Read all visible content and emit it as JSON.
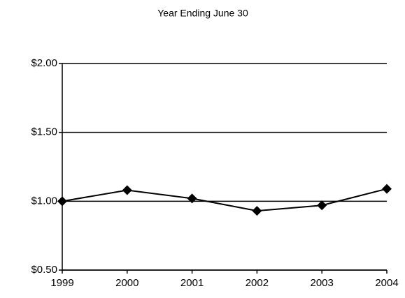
{
  "chart_data": {
    "type": "line",
    "title": "Year Ending June 30",
    "categories": [
      "1999",
      "2000",
      "2001",
      "2002",
      "2003",
      "2004"
    ],
    "values": [
      1.0,
      1.08,
      1.02,
      0.93,
      0.97,
      1.09
    ],
    "color": "#000000",
    "ylim": [
      0.5,
      2.0
    ],
    "yticks": [
      {
        "value": 0.5,
        "label": "$0.50"
      },
      {
        "value": 1.0,
        "label": "$1.00"
      },
      {
        "value": 1.5,
        "label": "$1.50"
      },
      {
        "value": 2.0,
        "label": "$2.00"
      }
    ],
    "grid": true
  }
}
